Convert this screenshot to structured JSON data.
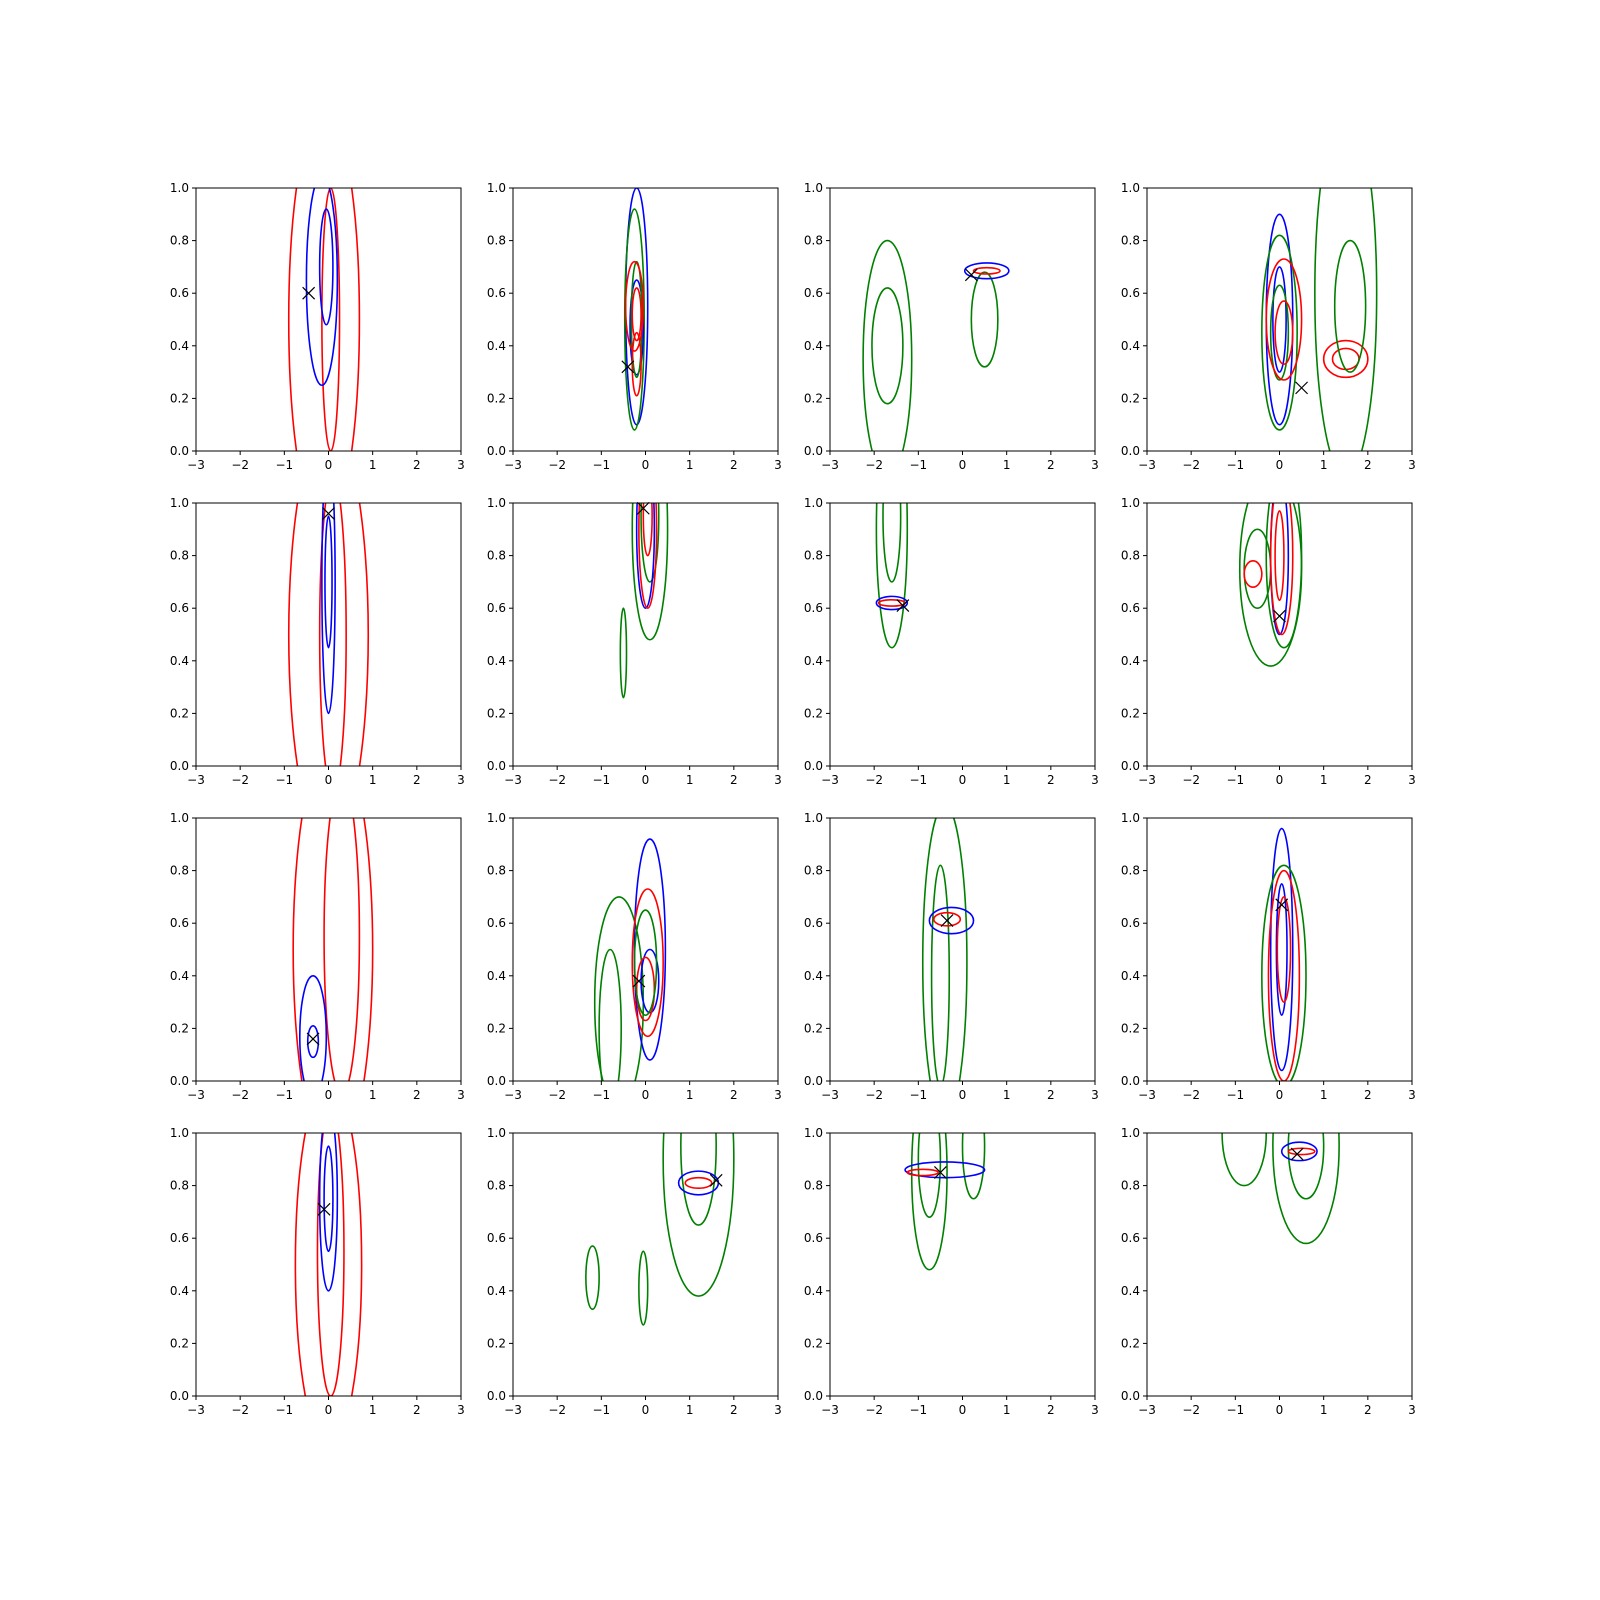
{
  "chart_data": {
    "type": "contour",
    "grid": false,
    "layout": "4x4 subplots",
    "xlim": [
      -3,
      3
    ],
    "ylim": [
      0,
      1
    ],
    "xticks": [
      "−3",
      "−2",
      "−1",
      "0",
      "1",
      "2",
      "3"
    ],
    "yticks": [
      "0.0",
      "0.2",
      "0.4",
      "0.6",
      "0.8",
      "1.0"
    ],
    "colors": {
      "blue": "#0000ff",
      "red": "#ff0000",
      "green": "#008000",
      "marker": "#000000"
    },
    "marker_symbol": "x",
    "contour_format": "ellipse approximations [color, cx, cy, rx, ry] in data units",
    "panels": [
      {
        "marker": [
          -0.45,
          0.6
        ],
        "contours": [
          [
            "red",
            -0.1,
            0.5,
            0.8,
            0.8
          ],
          [
            "red",
            0.05,
            0.5,
            0.2,
            0.5
          ],
          [
            "blue",
            -0.15,
            0.65,
            0.35,
            0.4
          ],
          [
            "blue",
            -0.05,
            0.7,
            0.15,
            0.22
          ]
        ]
      },
      {
        "marker": [
          -0.4,
          0.32
        ],
        "contours": [
          [
            "blue",
            -0.2,
            0.55,
            0.25,
            0.45
          ],
          [
            "green",
            -0.25,
            0.5,
            0.22,
            0.42
          ],
          [
            "blue",
            -0.2,
            0.47,
            0.15,
            0.18
          ],
          [
            "green",
            -0.2,
            0.5,
            0.12,
            0.22
          ],
          [
            "red",
            -0.25,
            0.55,
            0.2,
            0.17
          ],
          [
            "red",
            -0.2,
            0.33,
            0.1,
            0.12
          ],
          [
            "red",
            -0.2,
            0.52,
            0.1,
            0.1
          ]
        ]
      },
      {
        "marker": [
          0.2,
          0.67
        ],
        "contours": [
          [
            "green",
            -1.7,
            0.35,
            0.55,
            0.45
          ],
          [
            "green",
            -1.7,
            0.4,
            0.35,
            0.22
          ],
          [
            "green",
            0.5,
            0.5,
            0.3,
            0.18
          ],
          [
            "blue",
            0.55,
            0.685,
            0.5,
            0.03
          ],
          [
            "red",
            0.55,
            0.685,
            0.3,
            0.012
          ]
        ]
      },
      {
        "marker": [
          0.5,
          0.24
        ],
        "contours": [
          [
            "blue",
            0,
            0.5,
            0.3,
            0.4
          ],
          [
            "blue",
            0,
            0.5,
            0.15,
            0.2
          ],
          [
            "green",
            0,
            0.45,
            0.4,
            0.37
          ],
          [
            "green",
            0,
            0.45,
            0.2,
            0.18
          ],
          [
            "red",
            0.1,
            0.5,
            0.4,
            0.23
          ],
          [
            "red",
            0.1,
            0.45,
            0.2,
            0.12
          ],
          [
            "red",
            1.5,
            0.35,
            0.5,
            0.07
          ],
          [
            "red",
            1.5,
            0.35,
            0.3,
            0.04
          ],
          [
            "green",
            1.5,
            0.6,
            0.7,
            0.7
          ],
          [
            "green",
            1.6,
            0.55,
            0.35,
            0.25
          ]
        ]
      },
      {
        "marker": [
          0,
          0.96
        ],
        "contours": [
          [
            "red",
            0,
            0.5,
            0.9,
            0.8
          ],
          [
            "red",
            0.1,
            0.5,
            0.3,
            0.6
          ],
          [
            "blue",
            0,
            0.7,
            0.15,
            0.5
          ],
          [
            "blue",
            0,
            0.7,
            0.08,
            0.25
          ]
        ]
      },
      {
        "marker": [
          -0.05,
          0.98
        ],
        "contours": [
          [
            "green",
            0.1,
            0.9,
            0.4,
            0.42
          ],
          [
            "green",
            0.1,
            0.95,
            0.2,
            0.25
          ],
          [
            "blue",
            0,
            0.9,
            0.2,
            0.3
          ],
          [
            "red",
            0.05,
            0.9,
            0.2,
            0.3
          ],
          [
            "red",
            0.05,
            0.95,
            0.1,
            0.15
          ],
          [
            "green",
            -0.5,
            0.43,
            0.07,
            0.17
          ]
        ]
      },
      {
        "marker": [
          -1.35,
          0.61
        ],
        "contours": [
          [
            "green",
            -1.6,
            0.9,
            0.35,
            0.45
          ],
          [
            "green",
            -1.6,
            0.95,
            0.2,
            0.25
          ],
          [
            "blue",
            -1.6,
            0.62,
            0.35,
            0.025
          ],
          [
            "red",
            -1.6,
            0.62,
            0.3,
            0.012
          ]
        ]
      },
      {
        "marker": [
          0,
          0.57
        ],
        "contours": [
          [
            "green",
            -0.2,
            0.75,
            0.7,
            0.37
          ],
          [
            "green",
            -0.5,
            0.75,
            0.3,
            0.15
          ],
          [
            "green",
            0.1,
            0.8,
            0.4,
            0.35
          ],
          [
            "blue",
            0,
            0.8,
            0.2,
            0.3
          ],
          [
            "red",
            0.05,
            0.8,
            0.25,
            0.3
          ],
          [
            "red",
            0,
            0.8,
            0.1,
            0.17
          ],
          [
            "red",
            -0.6,
            0.73,
            0.2,
            0.05
          ]
        ]
      },
      {
        "marker": [
          -0.35,
          0.16
        ],
        "contours": [
          [
            "red",
            0.1,
            0.5,
            0.9,
            0.8
          ],
          [
            "red",
            0.3,
            0.55,
            0.4,
            0.6
          ],
          [
            "blue",
            -0.35,
            0.17,
            0.3,
            0.23
          ],
          [
            "blue",
            -0.35,
            0.15,
            0.12,
            0.06
          ]
        ]
      },
      {
        "marker": [
          -0.15,
          0.38
        ],
        "contours": [
          [
            "green",
            -0.6,
            0.3,
            0.55,
            0.4
          ],
          [
            "green",
            -0.8,
            0.2,
            0.25,
            0.3
          ],
          [
            "blue",
            0.1,
            0.5,
            0.35,
            0.42
          ],
          [
            "blue",
            0.1,
            0.38,
            0.2,
            0.12
          ],
          [
            "red",
            0.05,
            0.45,
            0.35,
            0.28
          ],
          [
            "red",
            0,
            0.35,
            0.2,
            0.12
          ],
          [
            "green",
            0,
            0.45,
            0.25,
            0.2
          ]
        ]
      },
      {
        "marker": [
          -0.35,
          0.61
        ],
        "contours": [
          [
            "green",
            -0.4,
            0.45,
            0.5,
            0.6
          ],
          [
            "green",
            -0.5,
            0.4,
            0.2,
            0.42
          ],
          [
            "blue",
            -0.25,
            0.61,
            0.5,
            0.05
          ],
          [
            "red",
            -0.35,
            0.615,
            0.3,
            0.025
          ]
        ]
      },
      {
        "marker": [
          0.05,
          0.67
        ],
        "contours": [
          [
            "blue",
            0.05,
            0.5,
            0.25,
            0.46
          ],
          [
            "blue",
            0.05,
            0.5,
            0.12,
            0.25
          ],
          [
            "green",
            0.1,
            0.4,
            0.5,
            0.42
          ],
          [
            "red",
            0.1,
            0.4,
            0.35,
            0.4
          ],
          [
            "red",
            0.1,
            0.5,
            0.15,
            0.2
          ]
        ]
      },
      {
        "marker": [
          -0.1,
          0.71
        ],
        "contours": [
          [
            "red",
            0,
            0.5,
            0.75,
            0.7
          ],
          [
            "red",
            0.05,
            0.55,
            0.3,
            0.55
          ],
          [
            "blue",
            0,
            0.75,
            0.2,
            0.35
          ],
          [
            "blue",
            0,
            0.75,
            0.1,
            0.2
          ]
        ]
      },
      {
        "marker": [
          1.6,
          0.82
        ],
        "contours": [
          [
            "green",
            1.2,
            0.9,
            0.8,
            0.52
          ],
          [
            "green",
            1.2,
            0.95,
            0.4,
            0.3
          ],
          [
            "blue",
            1.2,
            0.81,
            0.45,
            0.045
          ],
          [
            "red",
            1.2,
            0.81,
            0.3,
            0.02
          ],
          [
            "green",
            -1.2,
            0.45,
            0.15,
            0.12
          ],
          [
            "green",
            -0.05,
            0.41,
            0.1,
            0.14
          ]
        ]
      },
      {
        "marker": [
          -0.5,
          0.85
        ],
        "contours": [
          [
            "green",
            -0.75,
            0.85,
            0.4,
            0.37
          ],
          [
            "green",
            -0.75,
            0.9,
            0.25,
            0.22
          ],
          [
            "green",
            0.25,
            0.95,
            0.25,
            0.2
          ],
          [
            "blue",
            -0.4,
            0.86,
            0.9,
            0.03
          ],
          [
            "red",
            -0.9,
            0.85,
            0.35,
            0.012
          ]
        ]
      },
      {
        "marker": [
          0.4,
          0.92
        ],
        "contours": [
          [
            "green",
            -0.8,
            1.0,
            0.5,
            0.2
          ],
          [
            "green",
            0.6,
            0.95,
            0.75,
            0.37
          ],
          [
            "green",
            0.6,
            0.95,
            0.4,
            0.2
          ],
          [
            "blue",
            0.45,
            0.93,
            0.4,
            0.035
          ],
          [
            "red",
            0.5,
            0.93,
            0.3,
            0.012
          ]
        ]
      }
    ]
  }
}
